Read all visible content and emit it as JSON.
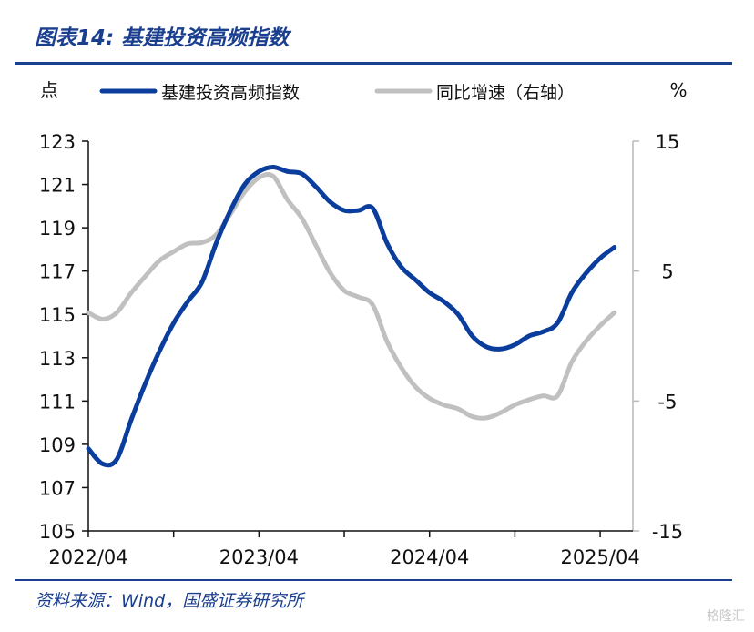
{
  "figure_title": "图表14:  基建投资高频指数",
  "source_text": "资料来源：Wind，国盛证券研究所",
  "watermark": "格隆汇",
  "colors": {
    "primary": "#0a3d9c",
    "secondary": "#c0c0c0",
    "accent": "#1b3f8f"
  },
  "chart_data": {
    "type": "line",
    "title": "基建投资高频指数",
    "left_axis": {
      "unit_label": "点",
      "ylim": [
        105,
        123
      ],
      "ticks": [
        "123",
        "121",
        "119",
        "117",
        "115",
        "113",
        "111",
        "109",
        "107",
        "105"
      ]
    },
    "right_axis": {
      "unit_label": "%",
      "ylim": [
        -15,
        15
      ],
      "ticks": [
        "15",
        "5",
        "-5",
        "-15"
      ]
    },
    "x_tick_labels": [
      "2022/04",
      "2023/04",
      "2024/04",
      "2025/04"
    ],
    "x_range": [
      0,
      38.3
    ],
    "grid": false,
    "legend_position": "top",
    "series": [
      {
        "name": "基建投资高频指数",
        "axis": "left",
        "color": "#0a3d9c",
        "points": [
          [
            0,
            108.8
          ],
          [
            1,
            108.1
          ],
          [
            2,
            108.3
          ],
          [
            3,
            110.1
          ],
          [
            4,
            111.8
          ],
          [
            5,
            113.3
          ],
          [
            6,
            114.6
          ],
          [
            7,
            115.6
          ],
          [
            8,
            116.5
          ],
          [
            9,
            118.3
          ],
          [
            10,
            119.8
          ],
          [
            11,
            121.0
          ],
          [
            12,
            121.6
          ],
          [
            13,
            121.8
          ],
          [
            14,
            121.6
          ],
          [
            15,
            121.5
          ],
          [
            16,
            120.9
          ],
          [
            17,
            120.2
          ],
          [
            18,
            119.8
          ],
          [
            19,
            119.8
          ],
          [
            20,
            119.9
          ],
          [
            21,
            118.3
          ],
          [
            22,
            117.2
          ],
          [
            23,
            116.6
          ],
          [
            24,
            116.0
          ],
          [
            25,
            115.6
          ],
          [
            26,
            115.0
          ],
          [
            27,
            114.0
          ],
          [
            28,
            113.5
          ],
          [
            29,
            113.4
          ],
          [
            30,
            113.6
          ],
          [
            31,
            114.0
          ],
          [
            32,
            114.2
          ],
          [
            33,
            114.6
          ],
          [
            34,
            116.0
          ],
          [
            35,
            116.9
          ],
          [
            36,
            117.6
          ],
          [
            37,
            118.1
          ]
        ]
      },
      {
        "name": "同比增速（右轴）",
        "axis": "right",
        "color": "#c0c0c0",
        "points": [
          [
            0,
            1.8
          ],
          [
            1,
            1.3
          ],
          [
            2,
            1.8
          ],
          [
            3,
            3.3
          ],
          [
            4,
            4.6
          ],
          [
            5,
            5.8
          ],
          [
            6,
            6.5
          ],
          [
            7,
            7.1
          ],
          [
            8,
            7.2
          ],
          [
            9,
            7.8
          ],
          [
            10,
            9.4
          ],
          [
            11,
            11.1
          ],
          [
            12,
            12.2
          ],
          [
            13,
            12.3
          ],
          [
            14,
            10.5
          ],
          [
            15,
            9.1
          ],
          [
            16,
            7.0
          ],
          [
            17,
            4.9
          ],
          [
            18,
            3.5
          ],
          [
            19,
            3.0
          ],
          [
            20,
            2.4
          ],
          [
            21,
            -0.4
          ],
          [
            22,
            -2.4
          ],
          [
            23,
            -3.9
          ],
          [
            24,
            -4.8
          ],
          [
            25,
            -5.3
          ],
          [
            26,
            -5.6
          ],
          [
            27,
            -6.2
          ],
          [
            28,
            -6.3
          ],
          [
            29,
            -5.9
          ],
          [
            30,
            -5.3
          ],
          [
            31,
            -4.9
          ],
          [
            32,
            -4.6
          ],
          [
            33,
            -4.6
          ],
          [
            34,
            -2.0
          ],
          [
            35,
            -0.4
          ],
          [
            36,
            0.8
          ],
          [
            37,
            1.8
          ]
        ]
      }
    ]
  }
}
